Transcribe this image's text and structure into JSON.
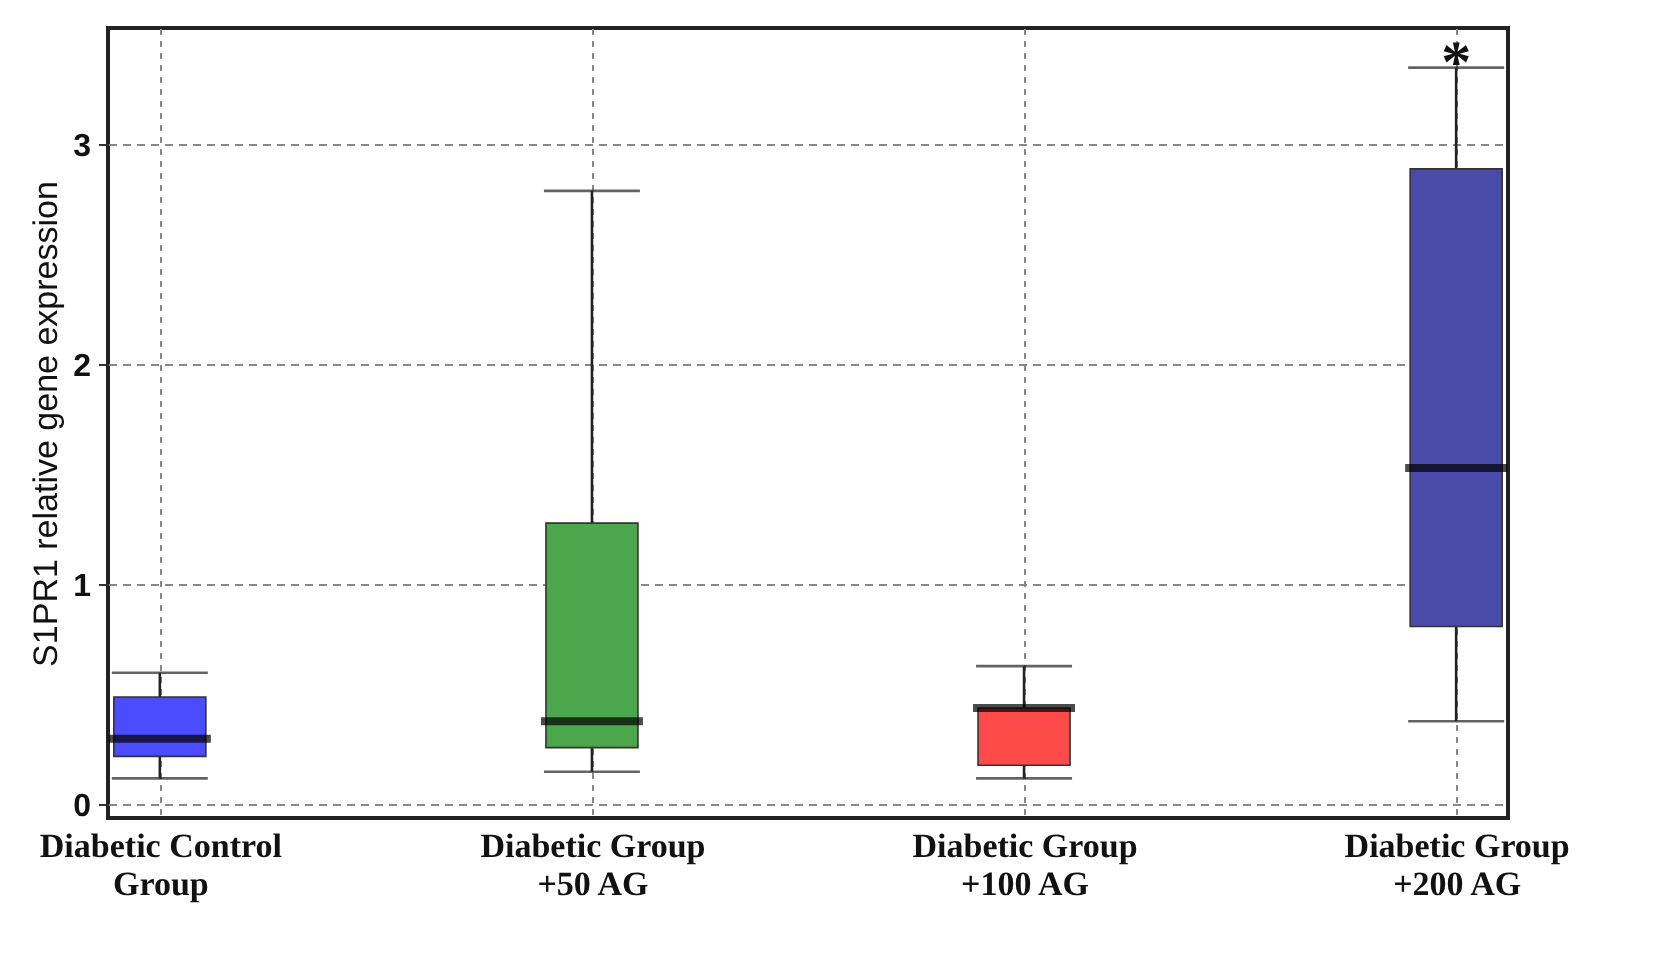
{
  "chart_data": {
    "type": "box",
    "ylabel": "S1PR1 relative gene expression",
    "categories": [
      "Diabetic Control Group",
      "Diabetic Group +50 AG",
      "Diabetic Group +100 AG",
      "Diabetic Group +200 AG"
    ],
    "colors": [
      "#4b4bff",
      "#4ca64c",
      "#ff4a4a",
      "#4a4aa8"
    ],
    "boxes": [
      {
        "low": 0.12,
        "q1": 0.22,
        "median": 0.3,
        "q3": 0.49,
        "high": 0.6
      },
      {
        "low": 0.15,
        "q1": 0.26,
        "median": 0.38,
        "q3": 1.28,
        "high": 2.79
      },
      {
        "low": 0.12,
        "q1": 0.18,
        "median": 0.44,
        "q3": 0.44,
        "high": 0.63
      },
      {
        "low": 0.38,
        "q1": 0.81,
        "median": 1.53,
        "q3": 2.89,
        "high": 3.35
      }
    ],
    "ylim": [
      -0.06,
      3.53
    ],
    "yticks": [
      0,
      1,
      2,
      3
    ],
    "grid": true,
    "annotations": [
      "*"
    ]
  }
}
